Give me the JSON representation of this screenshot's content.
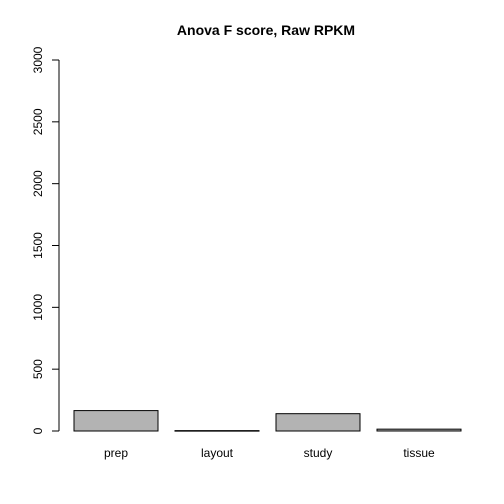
{
  "chart_data": {
    "type": "bar",
    "title": "Anova F score, Raw RPKM",
    "xlabel": "",
    "ylabel": "",
    "categories": [
      "prep",
      "layout",
      "study",
      "tissue"
    ],
    "values": [
      165,
      3,
      140,
      15
    ],
    "ylim": [
      0,
      3000
    ],
    "yticks": [
      0,
      500,
      1000,
      1500,
      2000,
      2500,
      3000
    ],
    "ytick_labels": [
      "0",
      "500",
      "1000",
      "1500",
      "2000",
      "2500",
      "3000"
    ],
    "bar_color": "#b3b3b3",
    "grid": false,
    "legend": "none"
  }
}
